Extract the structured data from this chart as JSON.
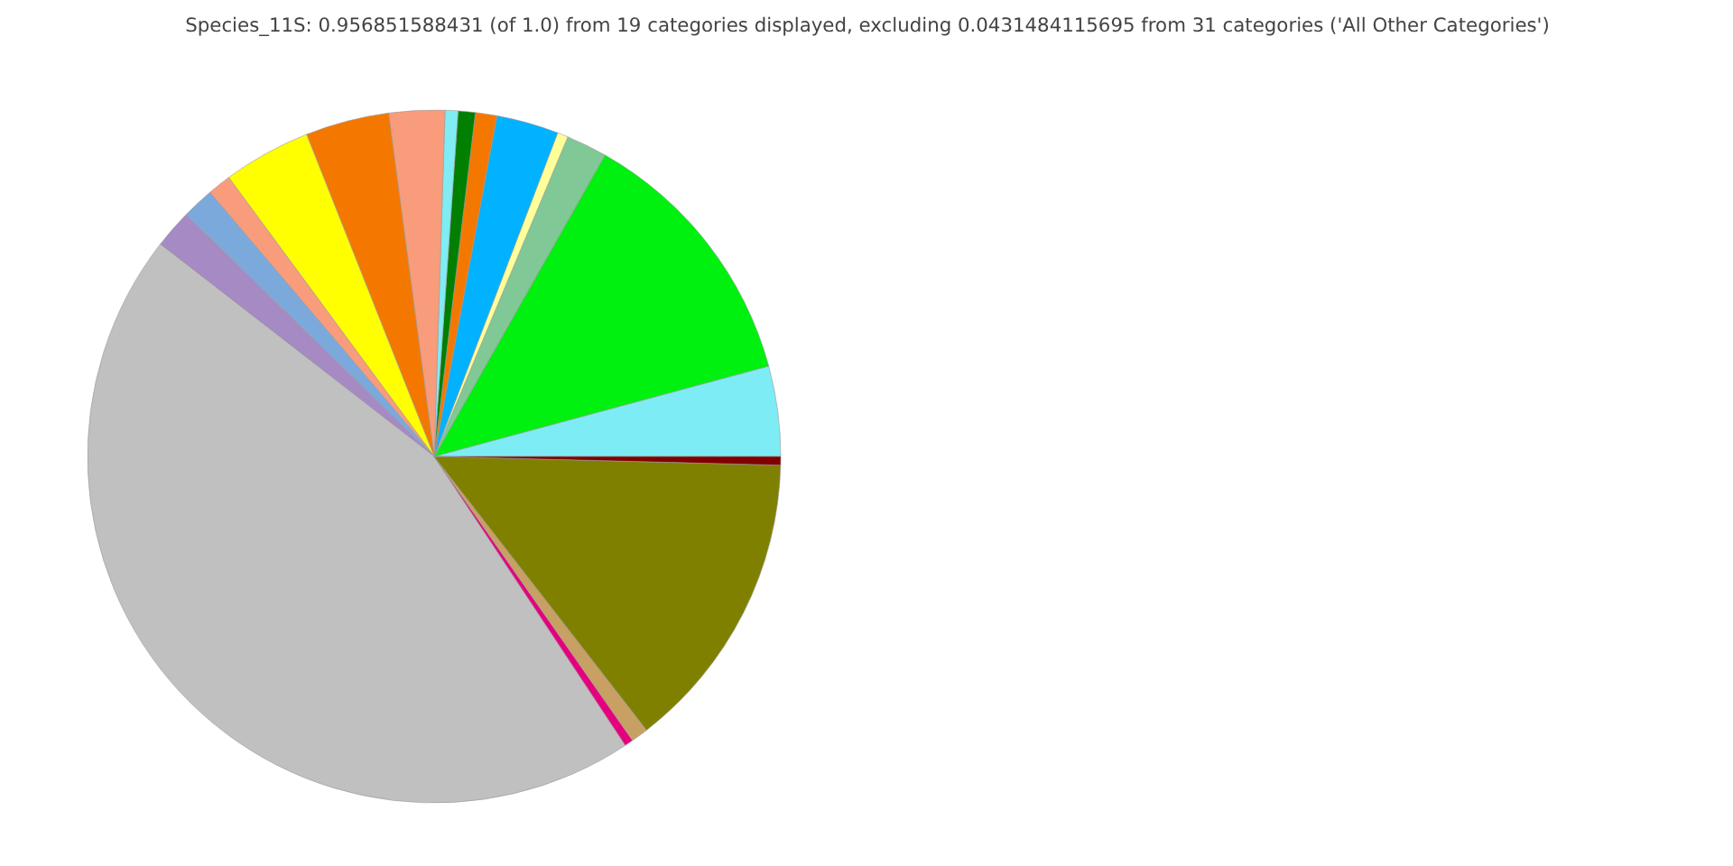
{
  "chart_data": {
    "type": "pie",
    "title": "Species_11S: 0.956851588431 (of 1.0) from 19 categories displayed, excluding 0.0431484115695 from 31 categories ('All Other Categories')",
    "categories": [
      null,
      null,
      null,
      null,
      null,
      null,
      null,
      null,
      null,
      null,
      null,
      null,
      null,
      null,
      null,
      null,
      null,
      null,
      null
    ],
    "values": [
      4.2,
      12.6,
      1.9,
      0.5,
      2.9,
      1.0,
      0.8,
      0.6,
      2.6,
      3.9,
      4.1,
      1.1,
      1.5,
      1.8,
      44.8,
      0.4,
      0.8,
      14.1,
      0.4
    ],
    "colors": [
      "#7eecf4",
      "#00f010",
      "#80c896",
      "#ffff99",
      "#00b2ff",
      "#f47800",
      "#007f00",
      "#7fedf3",
      "#f99c7c",
      "#f47800",
      "#ffff00",
      "#f99c7c",
      "#7ba9dc",
      "#a58ac4",
      "#c0c0c0",
      "#e6007e",
      "#c8a064",
      "#808000",
      "#800000"
    ]
  }
}
